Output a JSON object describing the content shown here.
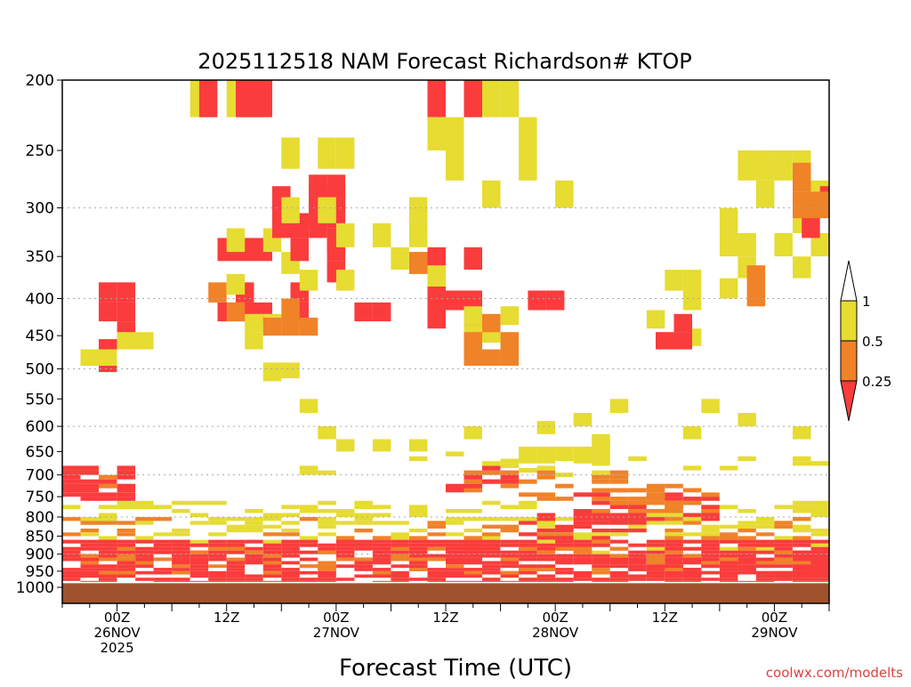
{
  "chart_data": {
    "type": "heatmap",
    "title": "2025112518 NAM Forecast Richardson# KTOP",
    "xlabel": "Forecast Time (UTC)",
    "ylabel": "",
    "credit": "coolwx.com/modelts",
    "y_axis": {
      "scale": "log-pressure",
      "range_hpa": [
        1000,
        200
      ],
      "tick_labels": [
        "200",
        "250",
        "300",
        "350",
        "400",
        "450",
        "500",
        "550",
        "600",
        "650",
        "700",
        "750",
        "800",
        "850",
        "900",
        "950",
        "1000"
      ],
      "gridlines_hpa": [
        300,
        400,
        500,
        600,
        700,
        800,
        900
      ]
    },
    "x_axis": {
      "range_hours": [
        0,
        84
      ],
      "ticks": [
        {
          "hour": 6,
          "line1": "00Z",
          "line2": "26NOV",
          "line3": "2025"
        },
        {
          "hour": 18,
          "line1": "12Z",
          "line2": "",
          "line3": ""
        },
        {
          "hour": 30,
          "line1": "00Z",
          "line2": "27NOV",
          "line3": ""
        },
        {
          "hour": 42,
          "line1": "12Z",
          "line2": "",
          "line3": ""
        },
        {
          "hour": 54,
          "line1": "00Z",
          "line2": "28NOV",
          "line3": ""
        },
        {
          "hour": 66,
          "line1": "12Z",
          "line2": "",
          "line3": ""
        },
        {
          "hour": 78,
          "line1": "00Z",
          "line2": "29NOV",
          "line3": ""
        }
      ]
    },
    "legend": {
      "placement": "right",
      "labels": [
        "1",
        "0.5",
        "0.25"
      ],
      "bins": [
        {
          "range": "> 1",
          "color": "#ffffff"
        },
        {
          "range": "0.5 - 1",
          "color": "#e6dc32"
        },
        {
          "range": "0.25 - 0.5",
          "color": "#f08228"
        },
        {
          "range": "< 0.25",
          "color": "#fa3c3c"
        }
      ]
    },
    "colors": {
      "low": "#fa3c3c",
      "mid": "#f08228",
      "high": "#e6dc32",
      "ground": "#a0522d"
    },
    "cell_size": {
      "hours": 2,
      "hpa_upper": 25,
      "hpa_lower": 10
    },
    "regions": [
      {
        "bin": "high",
        "hours": [
          0,
          84
        ],
        "hpa": [
          760,
          900
        ],
        "density": 0.38
      },
      {
        "bin": "mid",
        "hours": [
          0,
          84
        ],
        "hpa": [
          800,
          880
        ],
        "density": 0.18
      },
      {
        "bin": "low",
        "hours": [
          0,
          84
        ],
        "hpa": [
          860,
          985
        ],
        "density": 0.72
      },
      {
        "bin": "mid",
        "hours": [
          2,
          84
        ],
        "hpa": [
          880,
          960
        ],
        "density": 0.22
      },
      {
        "bin": "low",
        "hours": [
          0,
          8
        ],
        "hpa": [
          680,
          760
        ],
        "density": 0.75
      },
      {
        "bin": "mid",
        "hours": [
          0,
          8
        ],
        "hpa": [
          690,
          740
        ],
        "density": 0.2
      },
      {
        "bin": "low",
        "hours": [
          4,
          10
        ],
        "hpa": [
          380,
          500
        ],
        "density": 0.45
      },
      {
        "bin": "high",
        "hours": [
          2,
          12
        ],
        "hpa": [
          420,
          520
        ],
        "density": 0.35
      },
      {
        "bin": "high",
        "hours": [
          9,
          16
        ],
        "hpa": [
          200,
          320
        ],
        "density": 0.15
      },
      {
        "bin": "high",
        "hours": [
          10,
          22
        ],
        "hpa": [
          200,
          215
        ],
        "density": 0.55
      },
      {
        "bin": "low",
        "hours": [
          15,
          22
        ],
        "hpa": [
          200,
          215
        ],
        "density": 0.5
      },
      {
        "bin": "low",
        "hours": [
          17,
          22
        ],
        "hpa": [
          330,
          420
        ],
        "density": 0.55
      },
      {
        "bin": "mid",
        "hours": [
          16,
          20
        ],
        "hpa": [
          380,
          440
        ],
        "density": 0.4
      },
      {
        "bin": "high",
        "hours": [
          16,
          26
        ],
        "hpa": [
          320,
          520
        ],
        "density": 0.3
      },
      {
        "bin": "low",
        "hours": [
          23,
          30
        ],
        "hpa": [
          280,
          420
        ],
        "density": 0.45
      },
      {
        "bin": "mid",
        "hours": [
          22,
          28
        ],
        "hpa": [
          400,
          450
        ],
        "density": 0.45
      },
      {
        "bin": "low",
        "hours": [
          27,
          31
        ],
        "hpa": [
          270,
          330
        ],
        "density": 0.6
      },
      {
        "bin": "high",
        "hours": [
          22,
          32
        ],
        "hpa": [
          240,
          500
        ],
        "density": 0.22
      },
      {
        "bin": "low",
        "hours": [
          32,
          35
        ],
        "hpa": [
          380,
          420
        ],
        "density": 0.4
      },
      {
        "bin": "high",
        "hours": [
          34,
          40
        ],
        "hpa": [
          290,
          360
        ],
        "density": 0.35
      },
      {
        "bin": "mid",
        "hours": [
          36,
          41
        ],
        "hpa": [
          320,
          370
        ],
        "density": 0.45
      },
      {
        "bin": "low",
        "hours": [
          40,
          46
        ],
        "hpa": [
          340,
          440
        ],
        "density": 0.55
      },
      {
        "bin": "high",
        "hours": [
          40,
          50
        ],
        "hpa": [
          360,
          480
        ],
        "density": 0.4
      },
      {
        "bin": "mid",
        "hours": [
          44,
          50
        ],
        "hpa": [
          420,
          500
        ],
        "density": 0.45
      },
      {
        "bin": "low",
        "hours": [
          40,
          45
        ],
        "hpa": [
          200,
          215
        ],
        "density": 0.75
      },
      {
        "bin": "mid",
        "hours": [
          38,
          46
        ],
        "hpa": [
          200,
          215
        ],
        "density": 0.35
      },
      {
        "bin": "high",
        "hours": [
          40,
          56
        ],
        "hpa": [
          200,
          290
        ],
        "density": 0.18
      },
      {
        "bin": "low",
        "hours": [
          51,
          54
        ],
        "hpa": [
          390,
          410
        ],
        "density": 0.7
      },
      {
        "bin": "high",
        "hours": [
          48,
          60
        ],
        "hpa": [
          590,
          700
        ],
        "density": 0.45
      },
      {
        "bin": "mid",
        "hours": [
          44,
          62
        ],
        "hpa": [
          690,
          760
        ],
        "density": 0.4
      },
      {
        "bin": "low",
        "hours": [
          42,
          50
        ],
        "hpa": [
          680,
          740
        ],
        "density": 0.45
      },
      {
        "bin": "low",
        "hours": [
          56,
          72
        ],
        "hpa": [
          740,
          820
        ],
        "density": 0.45
      },
      {
        "bin": "mid",
        "hours": [
          58,
          72
        ],
        "hpa": [
          720,
          790
        ],
        "density": 0.35
      },
      {
        "bin": "low",
        "hours": [
          50,
          64
        ],
        "hpa": [
          790,
          860
        ],
        "density": 0.45
      },
      {
        "bin": "high",
        "hours": [
          24,
          84
        ],
        "hpa": [
          550,
          700
        ],
        "density": 0.08
      },
      {
        "bin": "high",
        "hours": [
          64,
          70
        ],
        "hpa": [
          340,
          470
        ],
        "density": 0.35
      },
      {
        "bin": "low",
        "hours": [
          65,
          68
        ],
        "hpa": [
          420,
          450
        ],
        "density": 0.4
      },
      {
        "bin": "high",
        "hours": [
          72,
          84
        ],
        "hpa": [
          250,
          400
        ],
        "density": 0.35
      },
      {
        "bin": "mid",
        "hours": [
          75,
          79
        ],
        "hpa": [
          360,
          400
        ],
        "density": 0.5
      },
      {
        "bin": "low",
        "hours": [
          81,
          84
        ],
        "hpa": [
          280,
          320
        ],
        "density": 0.5
      },
      {
        "bin": "mid",
        "hours": [
          80,
          84
        ],
        "hpa": [
          260,
          300
        ],
        "density": 0.45
      },
      {
        "bin": "low",
        "hours": [
          80,
          84
        ],
        "hpa": [
          890,
          960
        ],
        "density": 0.7
      },
      {
        "bin": "low",
        "hours": [
          60,
          84
        ],
        "hpa": [
          930,
          970
        ],
        "density": 0.45
      }
    ]
  }
}
